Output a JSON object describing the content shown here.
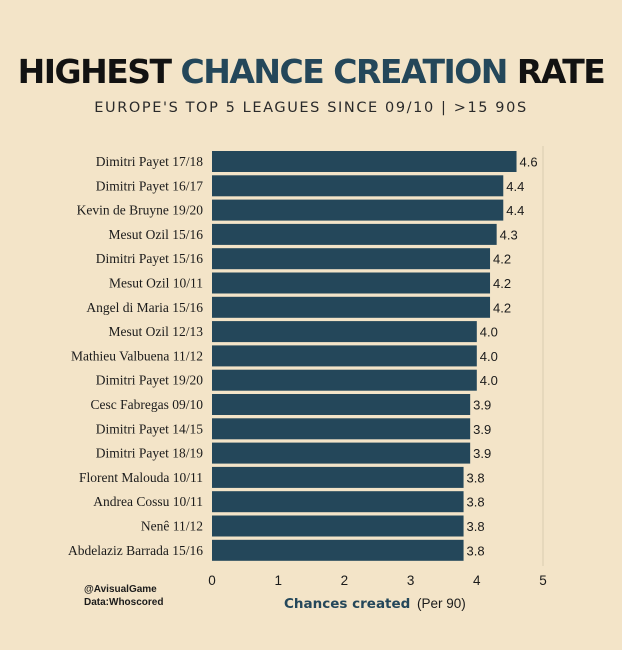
{
  "header": {
    "title_part1": "HIGHEST",
    "title_accent": "CHANCE CREATION",
    "title_part2": "RATE",
    "subtitle": "EUROPE'S TOP 5 LEAGUES SINCE 09/10  |  >15 90S"
  },
  "footer": {
    "handle": "@AvisualGame",
    "source": "Data:Whoscored"
  },
  "colors": {
    "background": "#f3e4c8",
    "bar": "#24475a",
    "accent": "#24475a",
    "text": "#1b1b1b"
  },
  "chart_data": {
    "type": "bar",
    "orientation": "horizontal",
    "categories": [
      "Dimitri Payet 17/18",
      "Dimitri Payet 16/17",
      "Kevin de Bruyne 19/20",
      "Mesut Ozil 15/16",
      "Dimitri Payet 15/16",
      "Mesut Ozil 10/11",
      "Angel di Maria 15/16",
      "Mesut Ozil 12/13",
      "Mathieu Valbuena 11/12",
      "Dimitri Payet 19/20",
      "Cesc Fabregas 09/10",
      "Dimitri Payet 14/15",
      "Dimitri Payet 18/19",
      "Florent Malouda 10/11",
      "Andrea Cossu 10/11",
      "Nenê 11/12",
      "Abdelaziz Barrada 15/16"
    ],
    "values": [
      4.6,
      4.4,
      4.4,
      4.3,
      4.2,
      4.2,
      4.2,
      4.0,
      4.0,
      4.0,
      3.9,
      3.9,
      3.9,
      3.8,
      3.8,
      3.8,
      3.8
    ],
    "value_labels": [
      "4.6",
      "4.4",
      "4.4",
      "4.3",
      "4.2",
      "4.2",
      "4.2",
      "4.0",
      "4.0",
      "4.0",
      "3.9",
      "3.9",
      "3.9",
      "3.8",
      "3.8",
      "3.8",
      "3.8"
    ],
    "xlim": [
      0,
      5
    ],
    "xticks": [
      "0",
      "1",
      "2",
      "3",
      "4",
      "5"
    ],
    "xlabel": "Chances created",
    "xlabel_suffix": "(Per 90)",
    "grid": false,
    "legend": "none"
  }
}
